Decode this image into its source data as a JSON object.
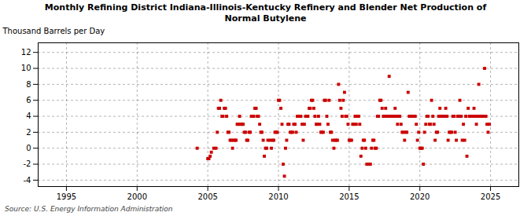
{
  "chart_data": {
    "type": "scatter",
    "title": "Monthly Refining District Indiana-Illinois-Kentucky Refinery and Blender Net Production of\nNormal Butylene",
    "ylabel": "Thousand Barrels per Day",
    "source": "Source: U.S. Energy Information Administration",
    "color": "#cc0000",
    "marker": "square",
    "grid": true,
    "xlim": [
      1993.0,
      2027.0
    ],
    "ylim": [
      -4.8,
      13.2
    ],
    "xticks": [
      1995,
      2000,
      2005,
      2010,
      2015,
      2020,
      2025
    ],
    "yticks": [
      -4,
      -2,
      0,
      2,
      4,
      6,
      8,
      10,
      12
    ],
    "x": [
      2004.25,
      2005.0,
      2005.08,
      2005.17,
      2005.25,
      2005.42,
      2005.58,
      2005.67,
      2005.75,
      2005.83,
      2005.92,
      2006.0,
      2006.08,
      2006.17,
      2006.25,
      2006.33,
      2006.42,
      2006.5,
      2006.58,
      2006.67,
      2006.75,
      2006.83,
      2006.92,
      2007.0,
      2007.08,
      2007.17,
      2007.25,
      2007.33,
      2007.42,
      2007.5,
      2007.58,
      2007.67,
      2007.75,
      2007.83,
      2007.92,
      2008.0,
      2008.08,
      2008.17,
      2008.25,
      2008.33,
      2008.42,
      2008.5,
      2008.58,
      2008.67,
      2008.75,
      2008.83,
      2008.92,
      2009.0,
      2009.08,
      2009.17,
      2009.25,
      2009.42,
      2009.5,
      2009.58,
      2009.67,
      2009.75,
      2009.83,
      2009.92,
      2010.0,
      2010.08,
      2010.17,
      2010.25,
      2010.33,
      2010.42,
      2010.5,
      2010.58,
      2010.67,
      2010.75,
      2010.83,
      2010.92,
      2011.0,
      2011.08,
      2011.17,
      2011.25,
      2011.33,
      2011.42,
      2011.5,
      2011.58,
      2011.67,
      2011.75,
      2011.83,
      2011.92,
      2012.0,
      2012.08,
      2012.17,
      2012.25,
      2012.33,
      2012.42,
      2012.5,
      2012.58,
      2012.67,
      2012.75,
      2012.83,
      2012.92,
      2013.0,
      2013.08,
      2013.17,
      2013.25,
      2013.33,
      2013.42,
      2013.5,
      2013.58,
      2013.67,
      2013.75,
      2013.83,
      2013.92,
      2014.0,
      2014.08,
      2014.17,
      2014.25,
      2014.33,
      2014.42,
      2014.5,
      2014.58,
      2014.67,
      2014.75,
      2014.83,
      2014.92,
      2015.0,
      2015.08,
      2015.17,
      2015.25,
      2015.33,
      2015.42,
      2015.5,
      2015.58,
      2015.67,
      2015.75,
      2015.83,
      2015.92,
      2016.0,
      2016.08,
      2016.17,
      2016.25,
      2016.33,
      2016.42,
      2016.5,
      2016.58,
      2016.67,
      2016.75,
      2016.83,
      2016.92,
      2017.0,
      2017.08,
      2017.17,
      2017.25,
      2017.33,
      2017.42,
      2017.5,
      2017.58,
      2017.67,
      2017.75,
      2017.83,
      2017.92,
      2018.0,
      2018.08,
      2018.17,
      2018.25,
      2018.33,
      2018.42,
      2018.5,
      2018.58,
      2018.67,
      2018.75,
      2018.83,
      2018.92,
      2019.0,
      2019.08,
      2019.17,
      2019.25,
      2019.33,
      2019.42,
      2019.5,
      2019.58,
      2019.67,
      2019.75,
      2019.83,
      2019.92,
      2020.0,
      2020.08,
      2020.17,
      2020.25,
      2020.33,
      2020.42,
      2020.5,
      2020.58,
      2020.67,
      2020.75,
      2020.83,
      2020.92,
      2021.0,
      2021.08,
      2021.17,
      2021.25,
      2021.33,
      2021.42,
      2021.5,
      2021.58,
      2021.67,
      2021.75,
      2021.83,
      2021.92,
      2022.0,
      2022.08,
      2022.17,
      2022.25,
      2022.33,
      2022.42,
      2022.5,
      2022.58,
      2022.67,
      2022.75,
      2022.83,
      2022.92,
      2023.0,
      2023.08,
      2023.17,
      2023.25,
      2023.33,
      2023.42,
      2023.5,
      2023.58,
      2023.67,
      2023.75,
      2023.83,
      2023.92,
      2024.0,
      2024.08,
      2024.17,
      2024.25,
      2024.33,
      2024.42,
      2024.5,
      2024.58,
      2024.67,
      2024.75,
      2024.83,
      2024.92
    ],
    "values": [
      0.0,
      -1.3,
      -1.3,
      -1.0,
      -0.5,
      0.0,
      0.0,
      2.0,
      5.0,
      5.0,
      6.0,
      4.0,
      4.0,
      5.0,
      5.0,
      4.0,
      2.0,
      2.0,
      1.0,
      1.0,
      0.0,
      1.0,
      1.0,
      1.0,
      3.0,
      3.0,
      4.0,
      3.0,
      3.0,
      3.0,
      2.0,
      2.0,
      1.0,
      1.0,
      2.0,
      2.0,
      4.0,
      4.0,
      4.0,
      5.0,
      5.0,
      4.0,
      4.0,
      3.0,
      2.0,
      2.0,
      1.0,
      -1.0,
      0.0,
      0.0,
      1.0,
      1.0,
      0.0,
      1.0,
      1.0,
      2.0,
      2.0,
      2.0,
      6.0,
      6.0,
      5.0,
      3.0,
      -2.0,
      -3.5,
      0.0,
      1.0,
      3.0,
      3.0,
      2.0,
      2.0,
      2.0,
      3.0,
      3.0,
      2.0,
      4.0,
      4.0,
      4.0,
      4.0,
      3.0,
      1.0,
      3.0,
      4.0,
      4.0,
      4.0,
      5.0,
      5.0,
      6.0,
      6.0,
      5.0,
      4.0,
      3.0,
      3.0,
      4.0,
      3.0,
      2.0,
      2.0,
      2.0,
      6.0,
      6.0,
      4.0,
      3.0,
      6.0,
      2.0,
      2.0,
      1.0,
      0.0,
      1.0,
      1.0,
      1.0,
      8.0,
      6.0,
      5.0,
      4.0,
      6.0,
      7.0,
      4.0,
      4.0,
      3.0,
      1.0,
      1.0,
      1.0,
      3.0,
      3.0,
      4.0,
      3.0,
      4.0,
      4.0,
      3.0,
      -1.0,
      0.0,
      1.0,
      1.0,
      0.0,
      -2.0,
      -2.0,
      -2.0,
      -2.0,
      0.0,
      1.0,
      1.0,
      0.0,
      0.0,
      4.0,
      4.0,
      6.0,
      6.0,
      5.0,
      4.0,
      4.0,
      5.0,
      4.0,
      4.0,
      9.0,
      4.0,
      4.0,
      4.0,
      4.0,
      5.0,
      4.0,
      3.0,
      4.0,
      4.0,
      3.0,
      2.0,
      2.0,
      1.0,
      2.0,
      2.0,
      7.0,
      4.0,
      4.0,
      4.0,
      4.0,
      4.0,
      4.0,
      3.0,
      1.0,
      2.0,
      0.0,
      0.0,
      0.0,
      -2.0,
      2.0,
      3.0,
      4.0,
      4.0,
      3.0,
      3.0,
      6.0,
      4.0,
      3.0,
      1.0,
      2.0,
      2.0,
      4.0,
      5.0,
      4.0,
      4.0,
      4.0,
      4.0,
      5.0,
      4.0,
      1.0,
      2.0,
      2.0,
      2.0,
      4.0,
      4.0,
      2.0,
      1.0,
      4.0,
      4.0,
      6.0,
      4.0,
      1.0,
      3.0,
      1.0,
      4.0,
      -1.0,
      5.0,
      4.0,
      4.0,
      4.0,
      4.0,
      5.0,
      4.0,
      3.0,
      4.0,
      8.0,
      4.0,
      4.0,
      4.0,
      4.0,
      10.0,
      4.0,
      3.0,
      2.0,
      3.0
    ]
  }
}
